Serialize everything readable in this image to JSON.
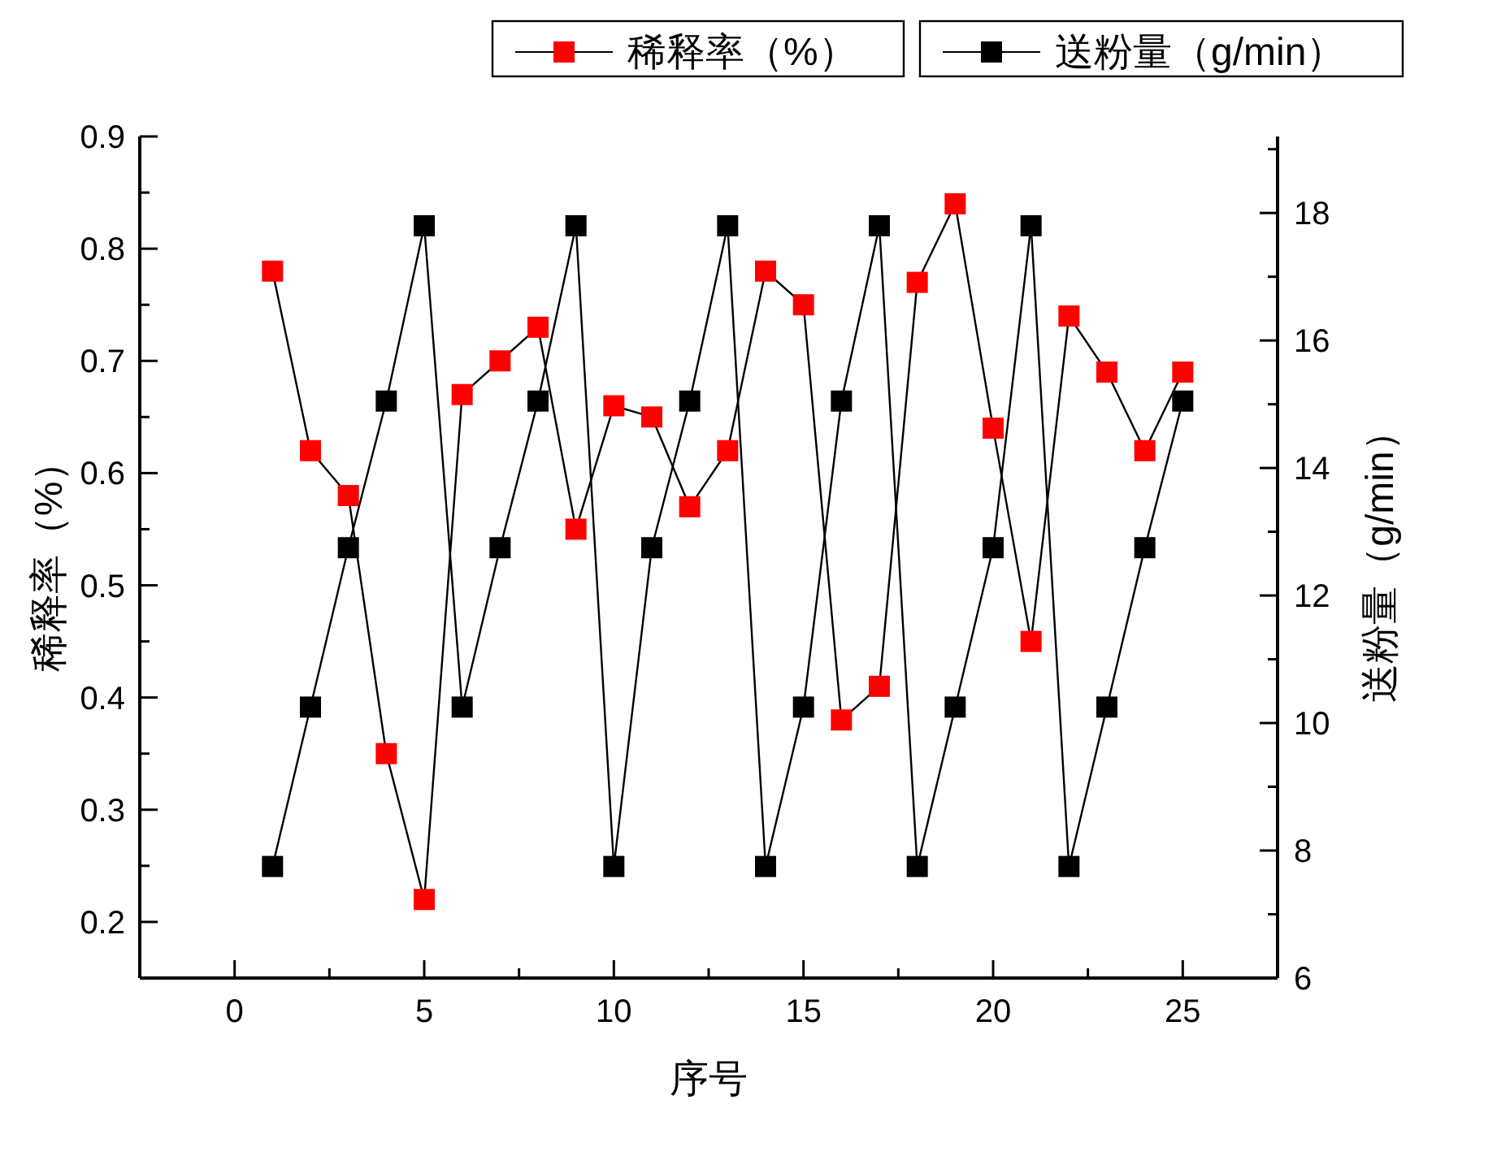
{
  "chart_data": {
    "type": "line",
    "xlabel": "序号",
    "ylabel": "稀释率（%）",
    "y2label": "送粉量（g/min）",
    "x": [
      1,
      2,
      3,
      4,
      5,
      6,
      7,
      8,
      9,
      10,
      11,
      12,
      13,
      14,
      15,
      16,
      17,
      18,
      19,
      20,
      21,
      22,
      23,
      24,
      25
    ],
    "series": [
      {
        "name": "稀释率（%）",
        "color": "#ff0000",
        "values": [
          0.78,
          0.62,
          0.58,
          0.35,
          0.22,
          0.67,
          0.7,
          0.73,
          0.55,
          0.66,
          0.65,
          0.57,
          0.62,
          0.78,
          0.75,
          0.38,
          0.41,
          0.77,
          0.84,
          0.64,
          0.45,
          0.74,
          0.69,
          0.62,
          0.69
        ]
      },
      {
        "name": "送粉量（g/min）",
        "color": "#000000",
        "axis": "y2",
        "values": [
          7.75,
          10.25,
          12.75,
          15.05,
          17.8,
          10.25,
          12.75,
          15.05,
          17.8,
          7.75,
          12.75,
          15.05,
          17.8,
          7.75,
          10.25,
          15.05,
          17.8,
          7.75,
          10.25,
          12.75,
          17.8,
          7.75,
          10.25,
          12.75,
          15.05
        ]
      }
    ],
    "xlim": [
      -2.5,
      27.5
    ],
    "xticks": [
      0,
      {
        "value": 2.5,
        "label": null
      },
      5,
      {
        "value": 7.5,
        "label": null
      },
      10,
      {
        "value": 12.5,
        "label": null
      },
      15,
      {
        "value": 17.5,
        "label": null
      },
      20,
      {
        "value": 22.5,
        "label": null
      },
      25
    ],
    "ylim": [
      0.15,
      0.9
    ],
    "yticks": [
      {
        "value": 0.15,
        "label": null
      },
      0.2,
      {
        "value": 0.25,
        "label": null
      },
      0.3,
      {
        "value": 0.35,
        "label": null
      },
      0.4,
      {
        "value": 0.45,
        "label": null
      },
      0.5,
      {
        "value": 0.55,
        "label": null
      },
      0.6,
      {
        "value": 0.65,
        "label": null
      },
      0.7,
      {
        "value": 0.75,
        "label": null
      },
      0.8,
      {
        "value": 0.85,
        "label": null
      },
      0.9
    ],
    "y2lim": [
      6,
      19.2
    ],
    "y2ticks": [
      6,
      {
        "value": 7,
        "label": null
      },
      8,
      {
        "value": 9,
        "label": null
      },
      10,
      {
        "value": 11,
        "label": null
      },
      12,
      {
        "value": 13,
        "label": null
      },
      14,
      {
        "value": 15,
        "label": null
      },
      16,
      {
        "value": 17,
        "label": null
      },
      18,
      {
        "value": 19,
        "label": null
      }
    ],
    "marker": "square",
    "line_style": "solid",
    "grid": false,
    "legend": "top right"
  }
}
